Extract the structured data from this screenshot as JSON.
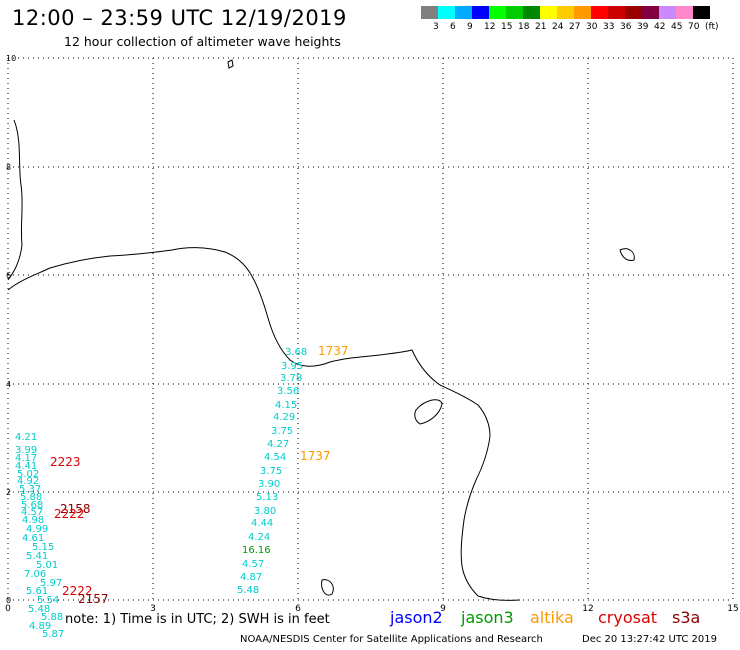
{
  "header": {
    "title": "12:00 – 23:59 UTC 12/19/2019",
    "subtitle": "12 hour collection of altimeter wave heights"
  },
  "legend": {
    "colors": [
      "#808080",
      "#00ffff",
      "#00aaff",
      "#0000ff",
      "#00ff00",
      "#00cc00",
      "#008800",
      "#ffff00",
      "#ffcc00",
      "#ff9900",
      "#ff0000",
      "#cc0000",
      "#990000",
      "#800040",
      "#cc88ff",
      "#ff88cc",
      "#000000"
    ],
    "labels": [
      "3",
      "6",
      "9",
      "12",
      "15",
      "18",
      "21",
      "24",
      "27",
      "30",
      "33",
      "36",
      "39",
      "42",
      "45",
      "70",
      "(ft)"
    ]
  },
  "axes": {
    "x_ticks": [
      "0",
      "3",
      "6",
      "9",
      "12",
      "15"
    ],
    "y_ticks": [
      "10",
      "8",
      "6",
      "4",
      "2",
      "0"
    ]
  },
  "satellites": {
    "jason2": {
      "label": "jason2",
      "color": "#0000ff"
    },
    "jason3": {
      "label": "jason3",
      "color": "#009900"
    },
    "altika": {
      "label": "altika",
      "color": "#ff9900"
    },
    "cryosat": {
      "label": "cryosat",
      "color": "#dd0000"
    },
    "s3a": {
      "label": "s3a",
      "color": "#880000"
    }
  },
  "observations": [
    {
      "t": "3.68",
      "c": "#00cccc"
    },
    {
      "t": "3.95",
      "c": "#00cccc"
    },
    {
      "t": "3.78",
      "c": "#00cccc"
    },
    {
      "t": "3.56",
      "c": "#00cccc"
    },
    {
      "t": "4.15",
      "c": "#00cccc"
    },
    {
      "t": "4.29",
      "c": "#00cccc"
    },
    {
      "t": "3.75",
      "c": "#00cccc"
    },
    {
      "t": "4.27",
      "c": "#00cccc"
    },
    {
      "t": "4.54",
      "c": "#00cccc"
    },
    {
      "t": "3.75",
      "c": "#00cccc"
    },
    {
      "t": "3.90",
      "c": "#00cccc"
    },
    {
      "t": "5.13",
      "c": "#00cccc"
    },
    {
      "t": "3.80",
      "c": "#00cccc"
    },
    {
      "t": "4.44",
      "c": "#00cccc"
    },
    {
      "t": "4.24",
      "c": "#00cccc"
    },
    {
      "t": "16.16",
      "c": "#009900"
    },
    {
      "t": "4.57",
      "c": "#00cccc"
    },
    {
      "t": "4.87",
      "c": "#00cccc"
    },
    {
      "t": "5.48",
      "c": "#00cccc"
    },
    {
      "t": "1737",
      "c": "#ff9900"
    },
    {
      "t": "1737",
      "c": "#ff9900"
    },
    {
      "t": "4.21",
      "c": "#00cccc"
    },
    {
      "t": "3.99",
      "c": "#00cccc"
    },
    {
      "t": "4.17",
      "c": "#00cccc"
    },
    {
      "t": "4.41",
      "c": "#00cccc"
    },
    {
      "t": "5.02",
      "c": "#00cccc"
    },
    {
      "t": "4.92",
      "c": "#00cccc"
    },
    {
      "t": "5.37",
      "c": "#00cccc"
    },
    {
      "t": "5.88",
      "c": "#00cccc"
    },
    {
      "t": "5.68",
      "c": "#00cccc"
    },
    {
      "t": "4.57",
      "c": "#00cccc"
    },
    {
      "t": "4.98",
      "c": "#00cccc"
    },
    {
      "t": "4.99",
      "c": "#00cccc"
    },
    {
      "t": "4.61",
      "c": "#00cccc"
    },
    {
      "t": "5.15",
      "c": "#00cccc"
    },
    {
      "t": "5.41",
      "c": "#00cccc"
    },
    {
      "t": "5.01",
      "c": "#00cccc"
    },
    {
      "t": "7.06",
      "c": "#00cccc"
    },
    {
      "t": "5.97",
      "c": "#00cccc"
    },
    {
      "t": "5.61",
      "c": "#00cccc"
    },
    {
      "t": "5.54",
      "c": "#00cccc"
    },
    {
      "t": "5.48",
      "c": "#00cccc"
    },
    {
      "t": "5.88",
      "c": "#00cccc"
    },
    {
      "t": "4.89",
      "c": "#00cccc"
    },
    {
      "t": "5.87",
      "c": "#00cccc"
    },
    {
      "t": "2223",
      "c": "#dd0000"
    },
    {
      "t": "2158",
      "c": "#880000"
    },
    {
      "t": "2222",
      "c": "#dd0000"
    },
    {
      "t": "2222",
      "c": "#dd0000"
    },
    {
      "t": "2157",
      "c": "#880000"
    }
  ],
  "footer": {
    "note": "note: 1) Time is in UTC; 2) SWH is in feet",
    "credit": "NOAA/NESDIS Center for Satellite Applications and Research",
    "timestamp": "Dec 20 13:27:42 UTC 2019"
  }
}
